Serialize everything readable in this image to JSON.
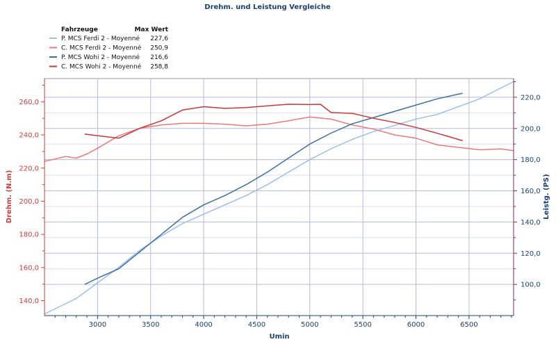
{
  "chart_data": {
    "type": "line",
    "title": "Drehm. und Leistung Vergleiche",
    "xlabel": "Umin",
    "ylabel_left": "Drehm. (N.m)",
    "ylabel_right": "Leistg. (PS)",
    "xlim": [
      2500,
      6920
    ],
    "ylim_left": [
      131,
      274
    ],
    "ylim_right": [
      80,
      232
    ],
    "x_ticks": [
      "3000",
      "3500",
      "4000",
      "4500",
      "5000",
      "5500",
      "6000",
      "6500"
    ],
    "y_left_ticks": [
      "140,0",
      "160,0",
      "180,0",
      "200,0",
      "220,0",
      "240,0",
      "260,0"
    ],
    "y_right_ticks": [
      "100,0",
      "120,0",
      "140,0",
      "160,0",
      "180,0",
      "200,0",
      "220,0"
    ],
    "legend": {
      "header_name": "Fahrzeuge",
      "header_max": "Max Wert",
      "entries": [
        {
          "name": "P. MCS Ferdi 2 - Moyenné",
          "max": "227,6",
          "color": "#9bbfe8"
        },
        {
          "name": "C. MCS Ferdi 2 - Moyenné",
          "max": "250,9",
          "color": "#e87a7a"
        },
        {
          "name": "P. MCS Wohi 2 - Moyenné",
          "max": "216,6",
          "color": "#3f6f9e"
        },
        {
          "name": "C. MCS Wohi 2 - Moyenné",
          "max": "258,8",
          "color": "#c8363a"
        }
      ]
    },
    "series": [
      {
        "name": "P. MCS Ferdi 2 - Moyenné",
        "axis": "right",
        "color": "#9bbfe8",
        "x": [
          2500,
          2650,
          2800,
          3000,
          3200,
          3400,
          3600,
          3800,
          4000,
          4200,
          4400,
          4600,
          4800,
          5000,
          5200,
          5400,
          5600,
          5800,
          6000,
          6200,
          6400,
          6600,
          6800,
          6920
        ],
        "y": [
          81,
          86,
          91,
          101,
          111,
          122,
          131,
          139,
          145,
          151,
          157,
          164,
          172,
          180,
          187,
          193,
          198,
          202,
          206,
          209,
          214,
          219,
          226,
          230
        ]
      },
      {
        "name": "C. MCS Ferdi 2 - Moyenné",
        "axis": "left",
        "color": "#e87a7a",
        "x": [
          2500,
          2600,
          2700,
          2800,
          2900,
          3000,
          3200,
          3400,
          3600,
          3800,
          4000,
          4200,
          4400,
          4600,
          4800,
          5000,
          5200,
          5400,
          5600,
          5800,
          6000,
          6200,
          6400,
          6600,
          6800,
          6920
        ],
        "y": [
          224,
          225.5,
          227,
          226,
          228.5,
          232,
          239.5,
          244,
          246,
          247,
          247,
          246.5,
          245.5,
          246.5,
          248.5,
          250.8,
          249.5,
          246,
          243.5,
          240,
          238,
          234,
          232.5,
          231,
          231.5,
          230.5
        ]
      },
      {
        "name": "P. MCS Wohi 2 - Moyenné",
        "axis": "right",
        "color": "#3f6f9e",
        "x": [
          2880,
          3000,
          3200,
          3400,
          3600,
          3800,
          4000,
          4200,
          4400,
          4600,
          4800,
          5000,
          5200,
          5400,
          5600,
          5800,
          6000,
          6200,
          6400,
          6440
        ],
        "y": [
          100,
          104,
          110,
          121,
          132,
          143,
          151,
          157,
          164,
          172,
          181,
          190,
          197,
          203,
          207,
          211,
          215,
          219,
          222,
          222.5
        ]
      },
      {
        "name": "C. MCS Wohi 2 - Moyenné",
        "axis": "left",
        "color": "#c8363a",
        "x": [
          2880,
          3000,
          3200,
          3400,
          3600,
          3800,
          4000,
          4200,
          4400,
          4600,
          4800,
          5000,
          5100,
          5200,
          5400,
          5600,
          5800,
          6000,
          6200,
          6440
        ],
        "y": [
          240.5,
          239.5,
          238,
          244,
          248.5,
          255,
          257,
          256,
          256.5,
          257.5,
          258.5,
          258.3,
          258.5,
          253.5,
          253,
          250,
          247.5,
          244.5,
          241,
          236.5
        ]
      }
    ]
  }
}
